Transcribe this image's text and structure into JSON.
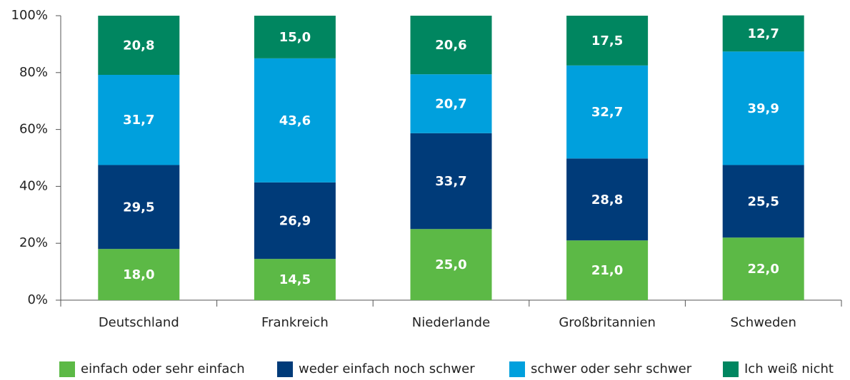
{
  "chart_data": {
    "type": "stacked_bar",
    "categories": [
      "Deutschland",
      "Frankreich",
      "Niederlande",
      "Großbritannien",
      "Schweden"
    ],
    "series": [
      {
        "name": "einfach oder sehr einfach",
        "color": "#5cb946",
        "values": [
          18.0,
          14.5,
          25.0,
          21.0,
          22.0
        ],
        "value_labels": [
          "18,0",
          "14,5",
          "25,0",
          "21,0",
          "22,0"
        ]
      },
      {
        "name": "weder einfach noch schwer",
        "color": "#003b79",
        "values": [
          29.5,
          26.9,
          33.7,
          28.8,
          25.5
        ],
        "value_labels": [
          "29,5",
          "26,9",
          "33,7",
          "28,8",
          "25,5"
        ]
      },
      {
        "name": "schwer oder sehr schwer",
        "color": "#00a0dd",
        "values": [
          31.7,
          43.6,
          20.7,
          32.7,
          39.9
        ],
        "value_labels": [
          "31,7",
          "43,6",
          "20,7",
          "32,7",
          "39,9"
        ]
      },
      {
        "name": "Ich weiß nicht",
        "color": "#008660",
        "values": [
          20.8,
          15.0,
          20.6,
          17.5,
          12.7
        ],
        "value_labels": [
          "20,8",
          "15,0",
          "20,6",
          "17,5",
          "12,7"
        ]
      }
    ],
    "ylim": [
      0,
      100
    ],
    "yticks": [
      {
        "value": 0,
        "label": "0%"
      },
      {
        "value": 20,
        "label": "20%"
      },
      {
        "value": 40,
        "label": "40%"
      },
      {
        "value": 60,
        "label": "60%"
      },
      {
        "value": 80,
        "label": "80%"
      },
      {
        "value": 100,
        "label": "100%"
      }
    ],
    "grid": false
  }
}
